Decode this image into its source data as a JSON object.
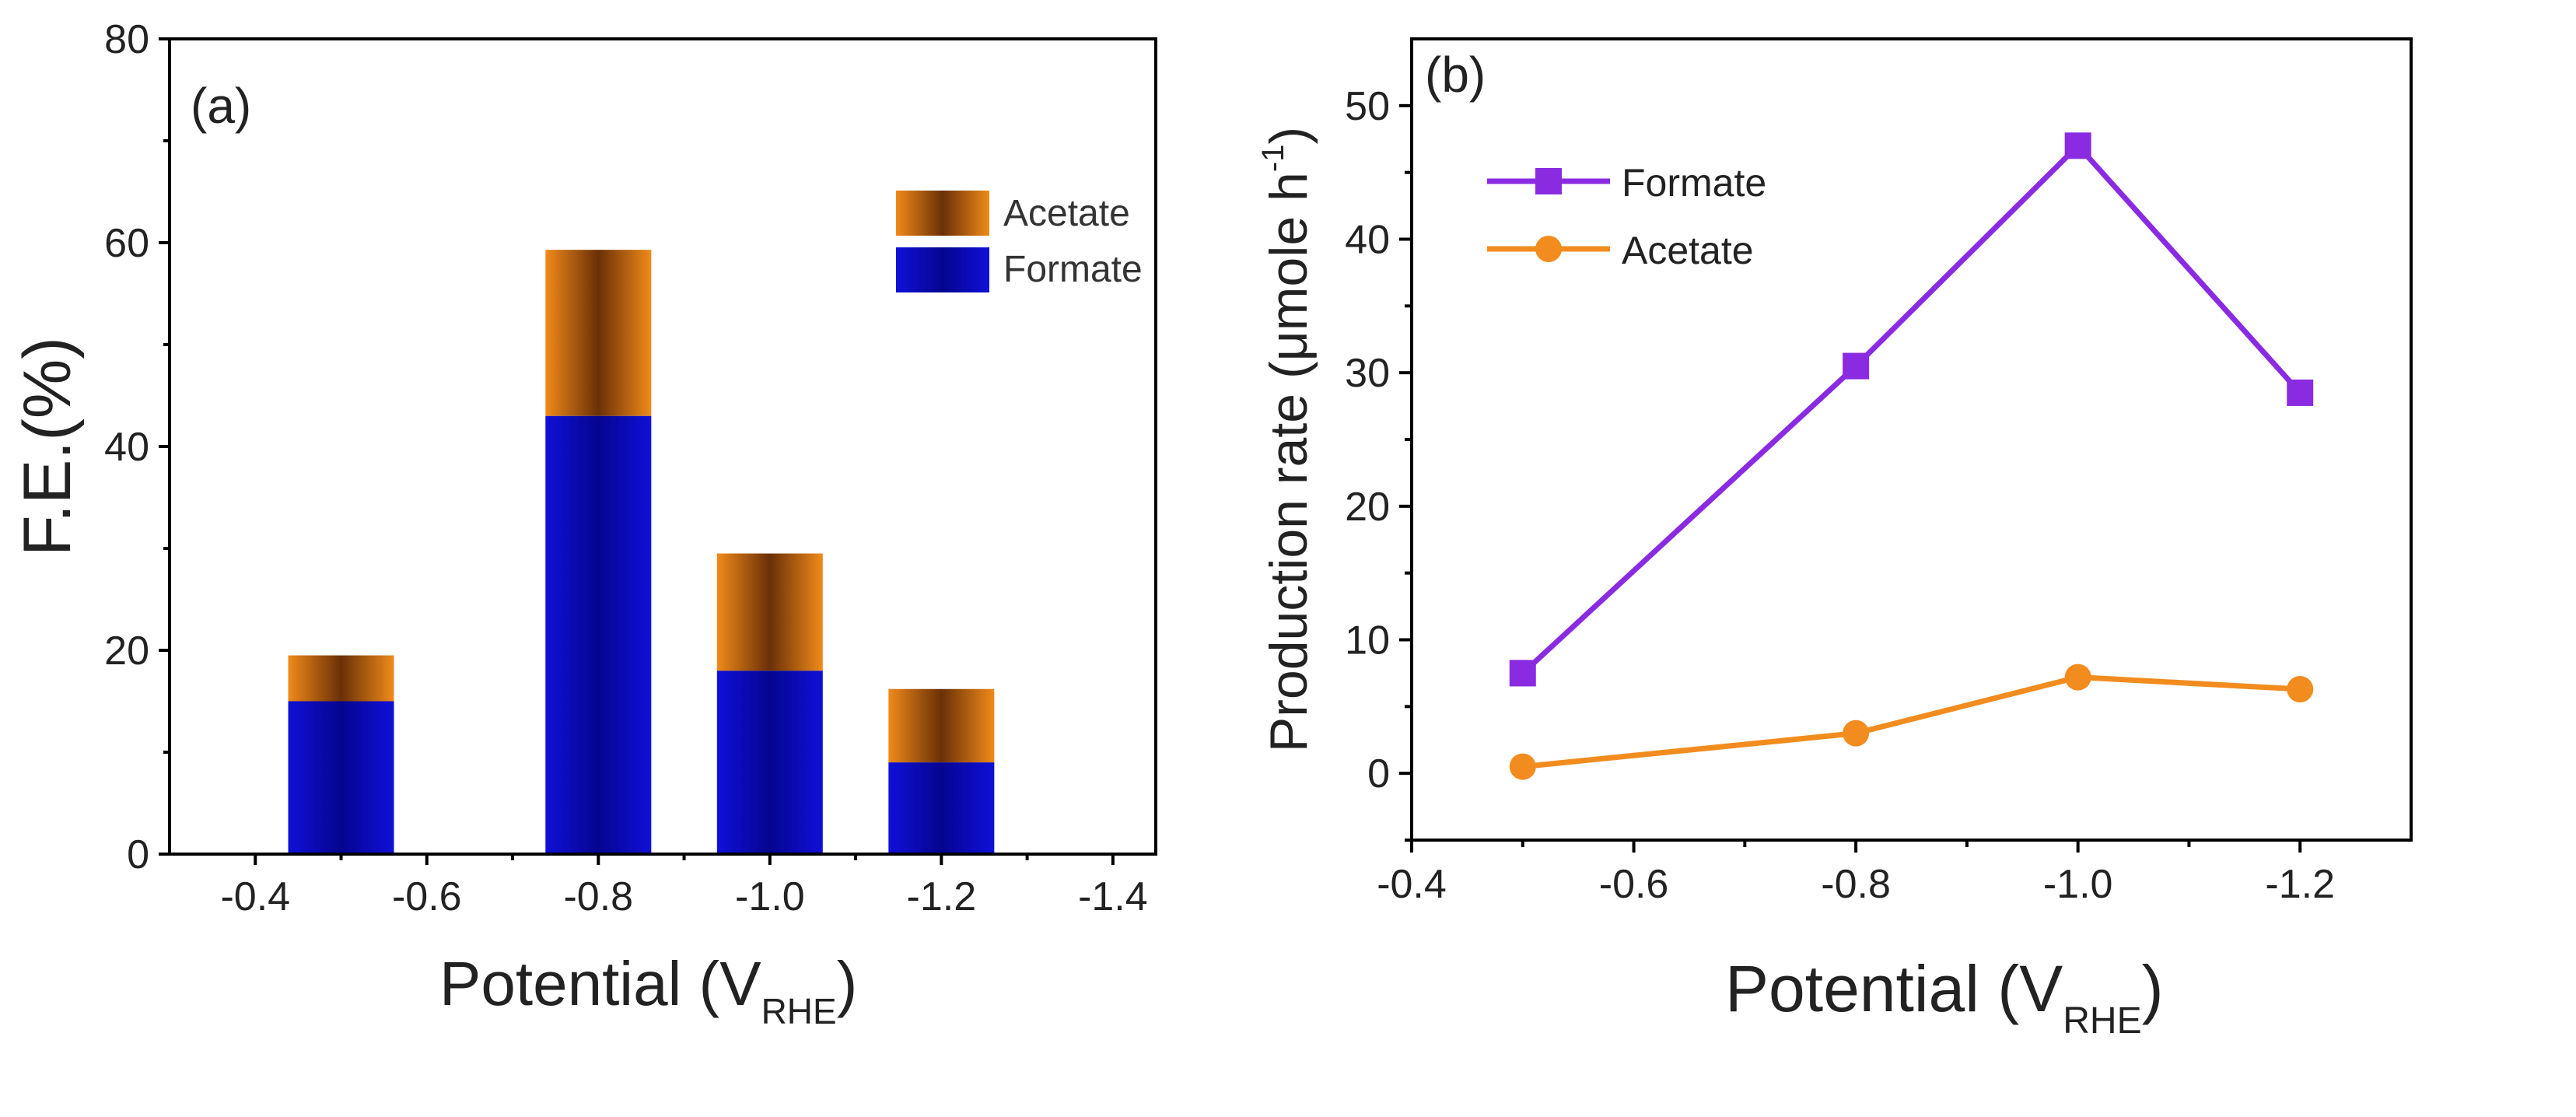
{
  "chart_data": [
    {
      "panel": "(a)",
      "type": "bar",
      "stacked": true,
      "categories": [
        "-0.5",
        "-0.8",
        "-1.0",
        "-1.2"
      ],
      "x": [
        -0.5,
        -0.8,
        -1.0,
        -1.2
      ],
      "series": [
        {
          "name": "Formate",
          "values": [
            15,
            43,
            18,
            9
          ],
          "color": "#0A0AC8"
        },
        {
          "name": "Acetate",
          "values": [
            4.5,
            16.3,
            11.5,
            7.2
          ],
          "color": "#E07A0A"
        }
      ],
      "xlabel": "Potential (V",
      "xlabel_sub": "RHE",
      "xlabel_close": ")",
      "ylabel": "F.E.(%)",
      "xlim": [
        -0.3,
        -1.45
      ],
      "ylim": [
        0,
        80
      ],
      "xticks": [
        -0.4,
        -0.6,
        -0.8,
        -1.0,
        -1.2,
        -1.4
      ],
      "xtick_labels": [
        "-0.4",
        "-0.6",
        "-0.8",
        "-1.0",
        "-1.2",
        "-1.4"
      ],
      "yticks": [
        0,
        20,
        40,
        60,
        80
      ],
      "ytick_labels": [
        "0",
        "20",
        "40",
        "60",
        "80"
      ],
      "legend": [
        "Acetate",
        "Formate"
      ],
      "legend_position": "top-right"
    },
    {
      "panel": "(b)",
      "type": "line",
      "x": [
        -0.5,
        -0.8,
        -1.0,
        -1.2
      ],
      "series": [
        {
          "name": "Formate",
          "values": [
            7.5,
            30.5,
            47,
            28.5
          ],
          "color": "#8A2BE2",
          "marker": "square"
        },
        {
          "name": "Acetate",
          "values": [
            0.5,
            3,
            7.2,
            6.3
          ],
          "color": "#F28C1E",
          "marker": "circle"
        }
      ],
      "xlabel": "Potential (V",
      "xlabel_sub": "RHE",
      "xlabel_close": ")",
      "ylabel": "Production rate (μmole h",
      "ylabel_sup": "-1",
      "ylabel_close": ")",
      "xlim": [
        -0.4,
        -1.3
      ],
      "ylim": [
        -5,
        55
      ],
      "xticks": [
        -0.4,
        -0.6,
        -0.8,
        -1.0,
        -1.2
      ],
      "xtick_labels": [
        "-0.4",
        "-0.6",
        "-0.8",
        "-1.0",
        "-1.2"
      ],
      "yticks": [
        0,
        10,
        20,
        30,
        40,
        50
      ],
      "ytick_labels": [
        "0",
        "10",
        "20",
        "30",
        "40",
        "50"
      ],
      "legend": [
        "Formate",
        "Acetate"
      ],
      "legend_position": "top-left"
    }
  ]
}
